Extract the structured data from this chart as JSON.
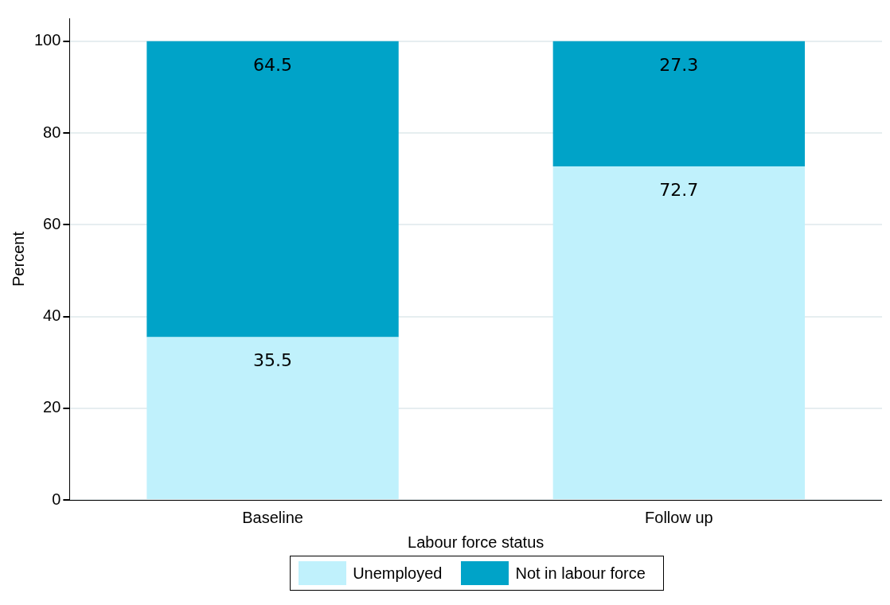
{
  "chart_data": {
    "type": "bar",
    "stacked": true,
    "xlabel": "Labour force status",
    "ylabel": "Percent",
    "categories": [
      "Baseline",
      "Follow up"
    ],
    "series": [
      {
        "name": "Unemployed",
        "color": "#c0f1fc",
        "values": [
          35.5,
          72.7
        ]
      },
      {
        "name": "Not in labour force",
        "color": "#00a3c8",
        "values": [
          64.5,
          27.3
        ]
      }
    ],
    "ylim": [
      0,
      105
    ],
    "yticks": [
      0,
      20,
      40,
      60,
      80,
      100
    ],
    "grid": "y",
    "legend": "bottom",
    "data_labels": true
  }
}
